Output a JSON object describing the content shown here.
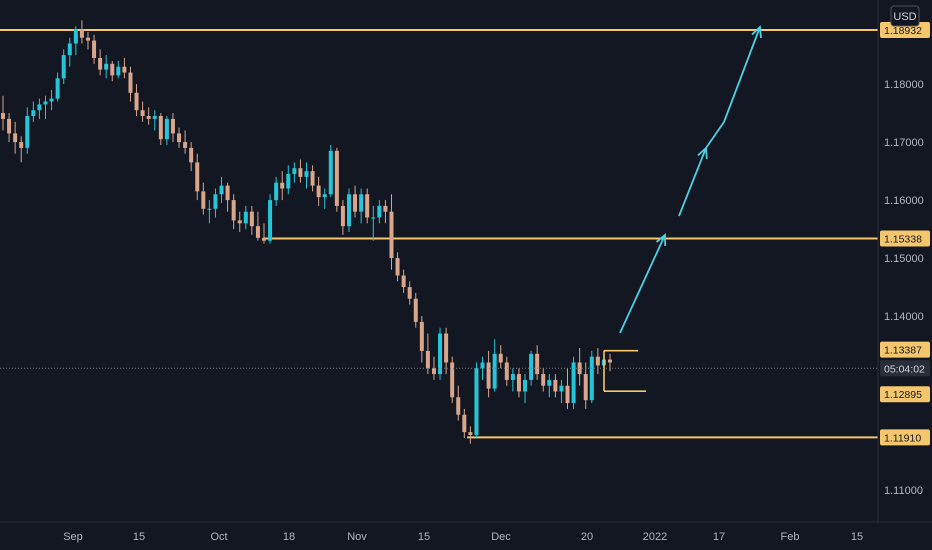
{
  "chart_data": {
    "type": "candlestick",
    "currency": "USD",
    "current_price_label": "05:04:02",
    "ylim": [
      1.1045,
      1.1945
    ],
    "y_ticks": [
      "1.18000",
      "1.17000",
      "1.16000",
      "1.15000",
      "1.14000",
      "1.11000"
    ],
    "x_ticks": [
      "Sep",
      "15",
      "Oct",
      "18",
      "Nov",
      "15",
      "Dec",
      "20",
      "2022",
      "17",
      "Feb",
      "15"
    ],
    "levels": [
      {
        "label": "1.18932",
        "value": 1.18932,
        "role": "target"
      },
      {
        "label": "1.15338",
        "value": 1.15338,
        "role": "resistance"
      },
      {
        "label": "1.13387",
        "value": 1.13387,
        "role": "range-high"
      },
      {
        "label": "1.12895",
        "value": 1.12895,
        "role": "range-low"
      },
      {
        "label": "1.11910",
        "value": 1.1191,
        "role": "support"
      }
    ],
    "forecast_arrows": 4,
    "candles": [
      [
        1.175,
        1.178,
        1.172,
        1.174
      ],
      [
        1.174,
        1.175,
        1.17,
        1.1715
      ],
      [
        1.1715,
        1.1735,
        1.168,
        1.17
      ],
      [
        1.17,
        1.171,
        1.1665,
        1.169
      ],
      [
        1.169,
        1.176,
        1.168,
        1.1745
      ],
      [
        1.1745,
        1.177,
        1.1735,
        1.1755
      ],
      [
        1.1755,
        1.1775,
        1.174,
        1.1765
      ],
      [
        1.1765,
        1.178,
        1.174,
        1.177
      ],
      [
        1.177,
        1.179,
        1.1755,
        1.1775
      ],
      [
        1.1775,
        1.182,
        1.177,
        1.181
      ],
      [
        1.181,
        1.186,
        1.18,
        1.185
      ],
      [
        1.185,
        1.188,
        1.183,
        1.187
      ],
      [
        1.187,
        1.19,
        1.185,
        1.1895
      ],
      [
        1.1895,
        1.191,
        1.187,
        1.188
      ],
      [
        1.188,
        1.189,
        1.186,
        1.1875
      ],
      [
        1.1875,
        1.1885,
        1.1835,
        1.1845
      ],
      [
        1.1845,
        1.186,
        1.1815,
        1.1825
      ],
      [
        1.1825,
        1.185,
        1.181,
        1.1835
      ],
      [
        1.1835,
        1.184,
        1.1805,
        1.1815
      ],
      [
        1.1815,
        1.184,
        1.181,
        1.183
      ],
      [
        1.183,
        1.1845,
        1.181,
        1.182
      ],
      [
        1.182,
        1.183,
        1.177,
        1.1785
      ],
      [
        1.1785,
        1.18,
        1.1745,
        1.1755
      ],
      [
        1.1755,
        1.177,
        1.1735,
        1.1745
      ],
      [
        1.1745,
        1.176,
        1.173,
        1.174
      ],
      [
        1.174,
        1.1755,
        1.172,
        1.1745
      ],
      [
        1.1745,
        1.175,
        1.1695,
        1.1705
      ],
      [
        1.1705,
        1.1745,
        1.1695,
        1.174
      ],
      [
        1.174,
        1.175,
        1.17,
        1.1715
      ],
      [
        1.1715,
        1.1725,
        1.169,
        1.17
      ],
      [
        1.17,
        1.172,
        1.168,
        1.169
      ],
      [
        1.169,
        1.17,
        1.165,
        1.1665
      ],
      [
        1.1665,
        1.168,
        1.16,
        1.1615
      ],
      [
        1.1615,
        1.163,
        1.1575,
        1.1585
      ],
      [
        1.1585,
        1.16,
        1.156,
        1.1585
      ],
      [
        1.1585,
        1.162,
        1.157,
        1.161
      ],
      [
        1.161,
        1.164,
        1.1595,
        1.1625
      ],
      [
        1.1625,
        1.163,
        1.158,
        1.16
      ],
      [
        1.16,
        1.161,
        1.155,
        1.1565
      ],
      [
        1.1565,
        1.158,
        1.1545,
        1.156
      ],
      [
        1.156,
        1.159,
        1.155,
        1.158
      ],
      [
        1.158,
        1.159,
        1.154,
        1.1555
      ],
      [
        1.1555,
        1.158,
        1.153,
        1.1535
      ],
      [
        1.1535,
        1.156,
        1.1525,
        1.153
      ],
      [
        1.153,
        1.161,
        1.1525,
        1.16
      ],
      [
        1.16,
        1.164,
        1.159,
        1.163
      ],
      [
        1.163,
        1.165,
        1.16,
        1.162
      ],
      [
        1.162,
        1.166,
        1.161,
        1.1645
      ],
      [
        1.1645,
        1.1665,
        1.163,
        1.1655
      ],
      [
        1.1655,
        1.167,
        1.163,
        1.164
      ],
      [
        1.164,
        1.1665,
        1.162,
        1.165
      ],
      [
        1.165,
        1.166,
        1.1615,
        1.1625
      ],
      [
        1.1625,
        1.164,
        1.159,
        1.1605
      ],
      [
        1.1605,
        1.162,
        1.1585,
        1.161
      ],
      [
        1.161,
        1.1695,
        1.1605,
        1.1685
      ],
      [
        1.1685,
        1.169,
        1.158,
        1.159
      ],
      [
        1.159,
        1.16,
        1.154,
        1.1555
      ],
      [
        1.1555,
        1.162,
        1.1545,
        1.161
      ],
      [
        1.161,
        1.1625,
        1.157,
        1.158
      ],
      [
        1.158,
        1.162,
        1.156,
        1.161
      ],
      [
        1.161,
        1.162,
        1.156,
        1.157
      ],
      [
        1.157,
        1.159,
        1.153,
        1.157
      ],
      [
        1.157,
        1.16,
        1.156,
        1.159
      ],
      [
        1.159,
        1.16,
        1.156,
        1.158
      ],
      [
        1.158,
        1.161,
        1.148,
        1.15
      ],
      [
        1.15,
        1.151,
        1.146,
        1.147
      ],
      [
        1.147,
        1.148,
        1.144,
        1.145
      ],
      [
        1.145,
        1.146,
        1.142,
        1.143
      ],
      [
        1.143,
        1.144,
        1.138,
        1.139
      ],
      [
        1.139,
        1.14,
        1.132,
        1.134
      ],
      [
        1.134,
        1.137,
        1.13,
        1.131
      ],
      [
        1.131,
        1.133,
        1.129,
        1.13
      ],
      [
        1.13,
        1.138,
        1.129,
        1.137
      ],
      [
        1.137,
        1.138,
        1.13,
        1.132
      ],
      [
        1.132,
        1.133,
        1.125,
        1.126
      ],
      [
        1.126,
        1.128,
        1.122,
        1.123
      ],
      [
        1.123,
        1.124,
        1.119,
        1.12
      ],
      [
        1.12,
        1.121,
        1.118,
        1.1195
      ],
      [
        1.1195,
        1.132,
        1.119,
        1.131
      ],
      [
        1.131,
        1.133,
        1.129,
        1.132
      ],
      [
        1.132,
        1.134,
        1.126,
        1.1275
      ],
      [
        1.1275,
        1.136,
        1.127,
        1.1335
      ],
      [
        1.1335,
        1.135,
        1.131,
        1.132
      ],
      [
        1.132,
        1.133,
        1.128,
        1.129
      ],
      [
        1.129,
        1.131,
        1.127,
        1.13
      ],
      [
        1.13,
        1.131,
        1.126,
        1.127
      ],
      [
        1.127,
        1.13,
        1.125,
        1.129
      ],
      [
        1.129,
        1.134,
        1.128,
        1.1335
      ],
      [
        1.1335,
        1.135,
        1.129,
        1.13
      ],
      [
        1.13,
        1.131,
        1.127,
        1.128
      ],
      [
        1.128,
        1.13,
        1.126,
        1.129
      ],
      [
        1.129,
        1.13,
        1.126,
        1.127
      ],
      [
        1.127,
        1.129,
        1.125,
        1.128
      ],
      [
        1.128,
        1.131,
        1.124,
        1.125
      ],
      [
        1.125,
        1.133,
        1.124,
        1.132
      ],
      [
        1.132,
        1.1345,
        1.128,
        1.13
      ],
      [
        1.13,
        1.132,
        1.124,
        1.1255
      ],
      [
        1.1255,
        1.134,
        1.125,
        1.133
      ],
      [
        1.133,
        1.1345,
        1.13,
        1.1315
      ],
      [
        1.1315,
        1.133,
        1.1295,
        1.1325
      ],
      [
        1.1325,
        1.1335,
        1.1305,
        1.132
      ]
    ]
  }
}
